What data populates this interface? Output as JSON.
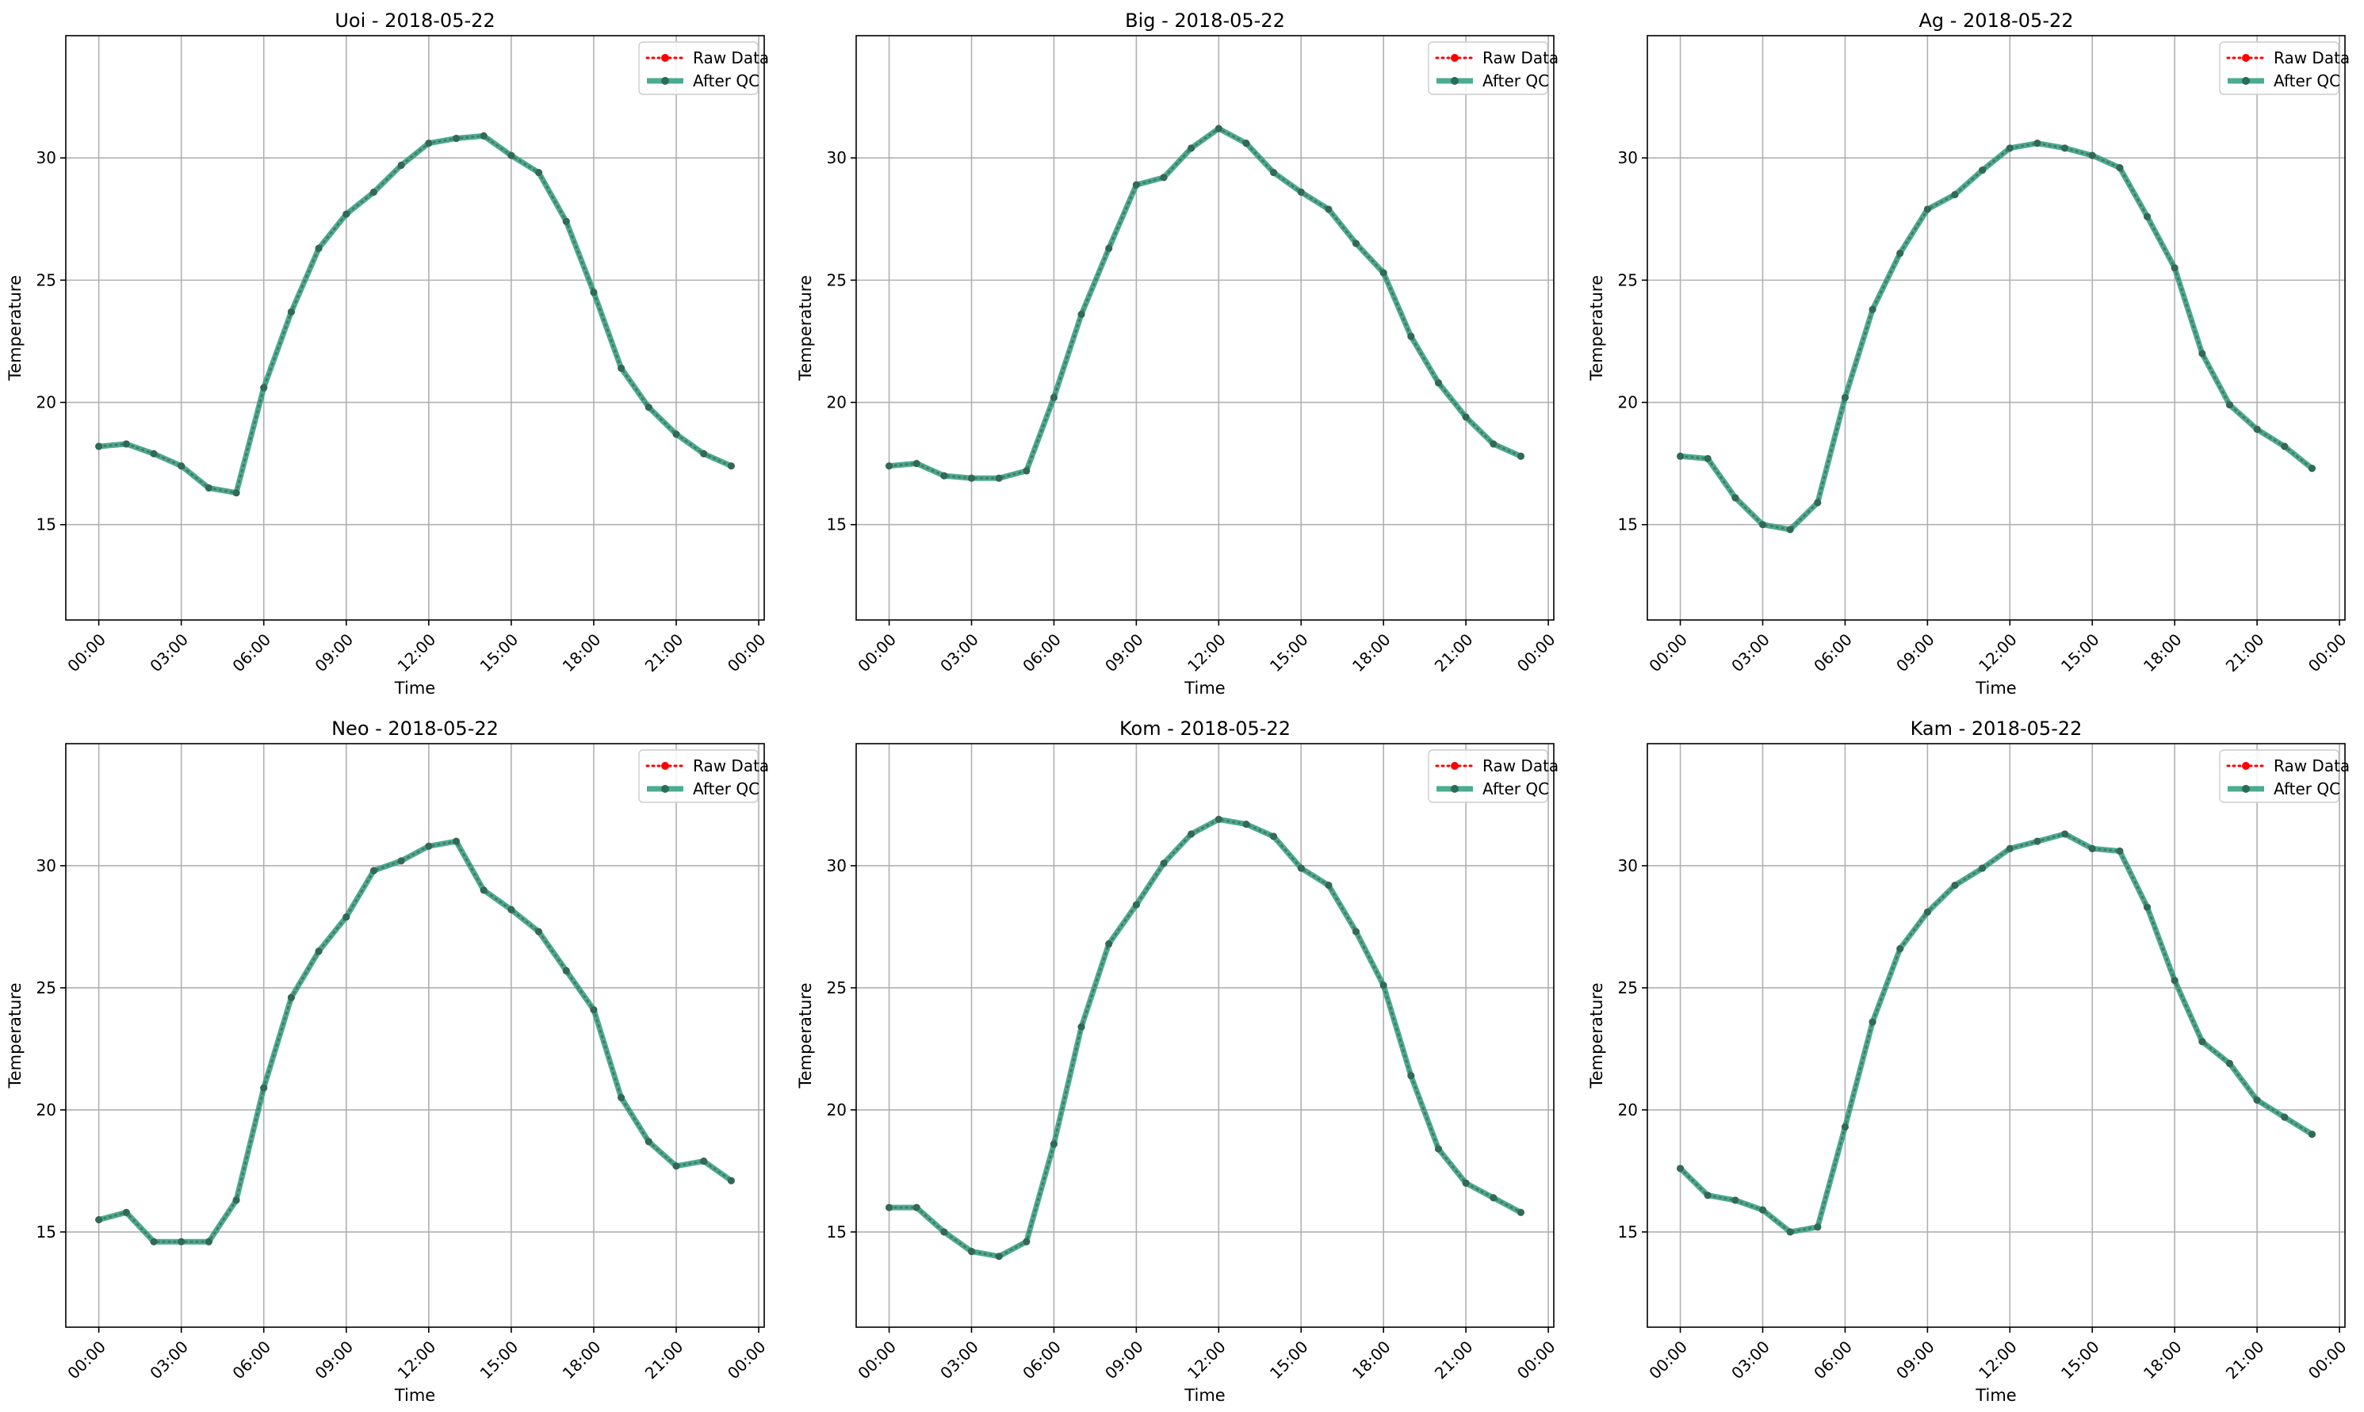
{
  "chart_data": [
    {
      "type": "line",
      "title": "Uoi - 2018-05-22",
      "xlabel": "Time",
      "ylabel": "Temperature",
      "x_hours": [
        0,
        1,
        2,
        3,
        4,
        5,
        6,
        7,
        8,
        9,
        10,
        11,
        12,
        13,
        14,
        15,
        16,
        17,
        18,
        19,
        20,
        21,
        22,
        23
      ],
      "xticks": [
        "00:00",
        "03:00",
        "06:00",
        "09:00",
        "12:00",
        "15:00",
        "18:00",
        "21:00",
        "00:00"
      ],
      "yticks": [
        15,
        20,
        25,
        30
      ],
      "xlim": [
        -1.2,
        24.2
      ],
      "ylim": [
        11.1,
        35.0
      ],
      "grid": true,
      "legend_position": "top-right",
      "series": [
        {
          "name": "Raw Data",
          "color": "#ff0000",
          "style": "dotted",
          "values": [
            18.2,
            18.3,
            17.9,
            17.4,
            16.5,
            16.3,
            20.6,
            23.7,
            26.3,
            27.7,
            28.6,
            29.7,
            30.6,
            30.8,
            30.9,
            30.1,
            29.4,
            27.4,
            24.5,
            21.4,
            19.8,
            18.7,
            17.9,
            17.4
          ]
        },
        {
          "name": "After QC",
          "color": "#2a9d7f",
          "style": "solid",
          "values": [
            18.2,
            18.3,
            17.9,
            17.4,
            16.5,
            16.3,
            20.6,
            23.7,
            26.3,
            27.7,
            28.6,
            29.7,
            30.6,
            30.8,
            30.9,
            30.1,
            29.4,
            27.4,
            24.5,
            21.4,
            19.8,
            18.7,
            17.9,
            17.4
          ]
        }
      ]
    },
    {
      "type": "line",
      "title": "Big - 2018-05-22",
      "xlabel": "Time",
      "ylabel": "Temperature",
      "x_hours": [
        0,
        1,
        2,
        3,
        4,
        5,
        6,
        7,
        8,
        9,
        10,
        11,
        12,
        13,
        14,
        15,
        16,
        17,
        18,
        19,
        20,
        21,
        22,
        23
      ],
      "xticks": [
        "00:00",
        "03:00",
        "06:00",
        "09:00",
        "12:00",
        "15:00",
        "18:00",
        "21:00",
        "00:00"
      ],
      "yticks": [
        15,
        20,
        25,
        30
      ],
      "xlim": [
        -1.2,
        24.2
      ],
      "ylim": [
        11.1,
        35.0
      ],
      "grid": true,
      "legend_position": "top-right",
      "series": [
        {
          "name": "Raw Data",
          "color": "#ff0000",
          "style": "dotted",
          "values": [
            17.4,
            17.5,
            17.0,
            16.9,
            16.9,
            17.2,
            20.2,
            23.6,
            26.3,
            28.9,
            29.2,
            30.4,
            31.2,
            30.6,
            29.4,
            28.6,
            27.9,
            26.5,
            25.3,
            22.7,
            20.8,
            19.4,
            18.3,
            17.8
          ]
        },
        {
          "name": "After QC",
          "color": "#2a9d7f",
          "style": "solid",
          "values": [
            17.4,
            17.5,
            17.0,
            16.9,
            16.9,
            17.2,
            20.2,
            23.6,
            26.3,
            28.9,
            29.2,
            30.4,
            31.2,
            30.6,
            29.4,
            28.6,
            27.9,
            26.5,
            25.3,
            22.7,
            20.8,
            19.4,
            18.3,
            17.8
          ]
        }
      ]
    },
    {
      "type": "line",
      "title": "Ag - 2018-05-22",
      "xlabel": "Time",
      "ylabel": "Temperature",
      "x_hours": [
        0,
        1,
        2,
        3,
        4,
        5,
        6,
        7,
        8,
        9,
        10,
        11,
        12,
        13,
        14,
        15,
        16,
        17,
        18,
        19,
        20,
        21,
        22,
        23
      ],
      "xticks": [
        "00:00",
        "03:00",
        "06:00",
        "09:00",
        "12:00",
        "15:00",
        "18:00",
        "21:00",
        "00:00"
      ],
      "yticks": [
        15,
        20,
        25,
        30
      ],
      "xlim": [
        -1.2,
        24.2
      ],
      "ylim": [
        11.1,
        35.0
      ],
      "grid": true,
      "legend_position": "top-right",
      "series": [
        {
          "name": "Raw Data",
          "color": "#ff0000",
          "style": "dotted",
          "values": [
            17.8,
            17.7,
            16.1,
            15.0,
            14.8,
            15.9,
            20.2,
            23.8,
            26.1,
            27.9,
            28.5,
            29.5,
            30.4,
            30.6,
            30.4,
            30.1,
            29.6,
            27.6,
            25.5,
            22.0,
            19.9,
            18.9,
            18.2,
            17.3
          ]
        },
        {
          "name": "After QC",
          "color": "#2a9d7f",
          "style": "solid",
          "values": [
            17.8,
            17.7,
            16.1,
            15.0,
            14.8,
            15.9,
            20.2,
            23.8,
            26.1,
            27.9,
            28.5,
            29.5,
            30.4,
            30.6,
            30.4,
            30.1,
            29.6,
            27.6,
            25.5,
            22.0,
            19.9,
            18.9,
            18.2,
            17.3
          ]
        }
      ]
    },
    {
      "type": "line",
      "title": "Neo - 2018-05-22",
      "xlabel": "Time",
      "ylabel": "Temperature",
      "x_hours": [
        0,
        1,
        2,
        3,
        4,
        5,
        6,
        7,
        8,
        9,
        10,
        11,
        12,
        13,
        14,
        15,
        16,
        17,
        18,
        19,
        20,
        21,
        22,
        23
      ],
      "xticks": [
        "00:00",
        "03:00",
        "06:00",
        "09:00",
        "12:00",
        "15:00",
        "18:00",
        "21:00",
        "00:00"
      ],
      "yticks": [
        15,
        20,
        25,
        30
      ],
      "xlim": [
        -1.2,
        24.2
      ],
      "ylim": [
        11.1,
        35.0
      ],
      "grid": true,
      "legend_position": "top-right",
      "series": [
        {
          "name": "Raw Data",
          "color": "#ff0000",
          "style": "dotted",
          "values": [
            15.5,
            15.8,
            14.6,
            14.6,
            14.6,
            16.3,
            20.9,
            24.6,
            26.5,
            27.9,
            29.8,
            30.2,
            30.8,
            31.0,
            29.0,
            28.2,
            27.3,
            25.7,
            24.1,
            20.5,
            18.7,
            17.7,
            17.9,
            17.1
          ]
        },
        {
          "name": "After QC",
          "color": "#2a9d7f",
          "style": "solid",
          "values": [
            15.5,
            15.8,
            14.6,
            14.6,
            14.6,
            16.3,
            20.9,
            24.6,
            26.5,
            27.9,
            29.8,
            30.2,
            30.8,
            31.0,
            29.0,
            28.2,
            27.3,
            25.7,
            24.1,
            20.5,
            18.7,
            17.7,
            17.9,
            17.1
          ]
        }
      ]
    },
    {
      "type": "line",
      "title": "Kom - 2018-05-22",
      "xlabel": "Time",
      "ylabel": "Temperature",
      "x_hours": [
        0,
        1,
        2,
        3,
        4,
        5,
        6,
        7,
        8,
        9,
        10,
        11,
        12,
        13,
        14,
        15,
        16,
        17,
        18,
        19,
        20,
        21,
        22,
        23
      ],
      "xticks": [
        "00:00",
        "03:00",
        "06:00",
        "09:00",
        "12:00",
        "15:00",
        "18:00",
        "21:00",
        "00:00"
      ],
      "yticks": [
        15,
        20,
        25,
        30
      ],
      "xlim": [
        -1.2,
        24.2
      ],
      "ylim": [
        11.1,
        35.0
      ],
      "grid": true,
      "legend_position": "top-right",
      "series": [
        {
          "name": "Raw Data",
          "color": "#ff0000",
          "style": "dotted",
          "values": [
            16.0,
            16.0,
            15.0,
            14.2,
            14.0,
            14.6,
            18.6,
            23.4,
            26.8,
            28.4,
            30.1,
            31.3,
            31.9,
            31.7,
            31.2,
            29.9,
            29.2,
            27.3,
            25.1,
            21.4,
            18.4,
            17.0,
            16.4,
            15.8
          ]
        },
        {
          "name": "After QC",
          "color": "#2a9d7f",
          "style": "solid",
          "values": [
            16.0,
            16.0,
            15.0,
            14.2,
            14.0,
            14.6,
            18.6,
            23.4,
            26.8,
            28.4,
            30.1,
            31.3,
            31.9,
            31.7,
            31.2,
            29.9,
            29.2,
            27.3,
            25.1,
            21.4,
            18.4,
            17.0,
            16.4,
            15.8
          ]
        }
      ]
    },
    {
      "type": "line",
      "title": "Kam - 2018-05-22",
      "xlabel": "Time",
      "ylabel": "Temperature",
      "x_hours": [
        0,
        1,
        2,
        3,
        4,
        5,
        6,
        7,
        8,
        9,
        10,
        11,
        12,
        13,
        14,
        15,
        16,
        17,
        18,
        19,
        20,
        21,
        22,
        23
      ],
      "xticks": [
        "00:00",
        "03:00",
        "06:00",
        "09:00",
        "12:00",
        "15:00",
        "18:00",
        "21:00",
        "00:00"
      ],
      "yticks": [
        15,
        20,
        25,
        30
      ],
      "xlim": [
        -1.2,
        24.2
      ],
      "ylim": [
        11.1,
        35.0
      ],
      "grid": true,
      "legend_position": "top-right",
      "series": [
        {
          "name": "Raw Data",
          "color": "#ff0000",
          "style": "dotted",
          "values": [
            17.6,
            16.5,
            16.3,
            15.9,
            15.0,
            15.2,
            19.3,
            23.6,
            26.6,
            28.1,
            29.2,
            29.9,
            30.7,
            31.0,
            31.3,
            30.7,
            30.6,
            28.3,
            25.3,
            22.8,
            21.9,
            20.4,
            19.7,
            19.0
          ]
        },
        {
          "name": "After QC",
          "color": "#2a9d7f",
          "style": "solid",
          "values": [
            17.6,
            16.5,
            16.3,
            15.9,
            15.0,
            15.2,
            19.3,
            23.6,
            26.6,
            28.1,
            29.2,
            29.9,
            30.7,
            31.0,
            31.3,
            30.7,
            30.6,
            28.3,
            25.3,
            22.8,
            21.9,
            20.4,
            19.7,
            19.0
          ]
        }
      ]
    }
  ]
}
